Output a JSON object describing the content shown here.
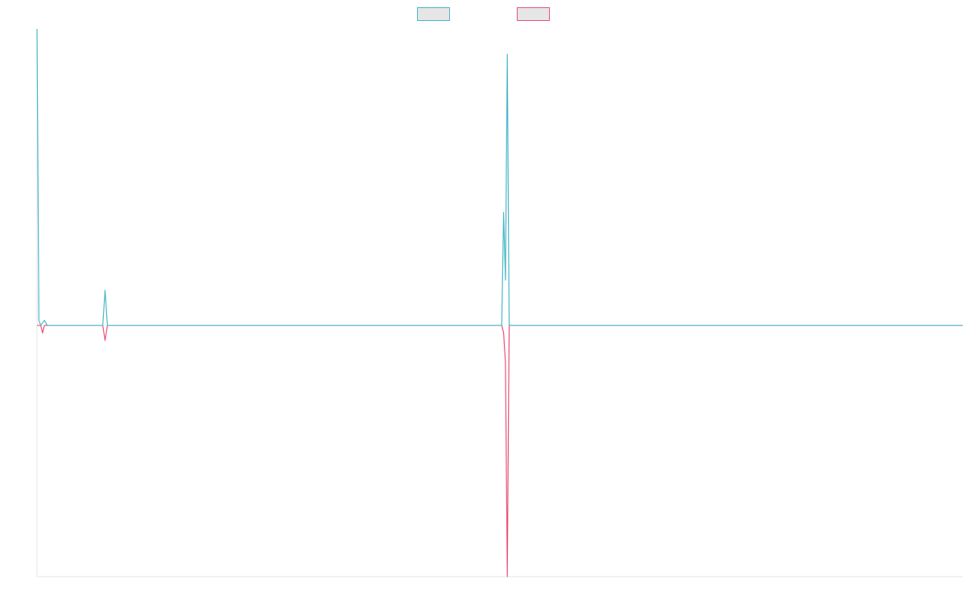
{
  "chart_data": {
    "type": "line",
    "title": "",
    "xlabel": "",
    "ylabel": "",
    "x_range": [
      0,
      100
    ],
    "y_range": [
      -1,
      1.18
    ],
    "legend": "top-center",
    "grid": false,
    "series": [
      {
        "name": "",
        "color": "#4bb8c6",
        "legend_fill": "#e6e6e6",
        "points": [
          [
            0,
            1.18
          ],
          [
            0.2,
            0.02
          ],
          [
            0.4,
            0
          ],
          [
            0.6,
            0.01
          ],
          [
            0.8,
            0.02
          ],
          [
            1.1,
            0
          ],
          [
            7.1,
            0
          ],
          [
            7.35,
            0.14
          ],
          [
            7.6,
            0
          ],
          [
            50.2,
            0
          ],
          [
            50.4,
            0.45
          ],
          [
            50.6,
            0.18
          ],
          [
            50.8,
            1.08
          ],
          [
            51.0,
            0
          ],
          [
            100,
            0
          ]
        ]
      },
      {
        "name": "",
        "color": "#e8537a",
        "legend_fill": "#e6e6e6",
        "points": [
          [
            0,
            0
          ],
          [
            0.4,
            0
          ],
          [
            0.6,
            -0.03
          ],
          [
            0.8,
            0
          ],
          [
            1.1,
            0
          ],
          [
            7.1,
            0
          ],
          [
            7.35,
            -0.06
          ],
          [
            7.6,
            0
          ],
          [
            50.2,
            0
          ],
          [
            50.4,
            -0.03
          ],
          [
            50.6,
            -0.15
          ],
          [
            50.8,
            -1.0
          ],
          [
            51.0,
            0
          ],
          [
            100,
            0
          ]
        ]
      }
    ]
  }
}
